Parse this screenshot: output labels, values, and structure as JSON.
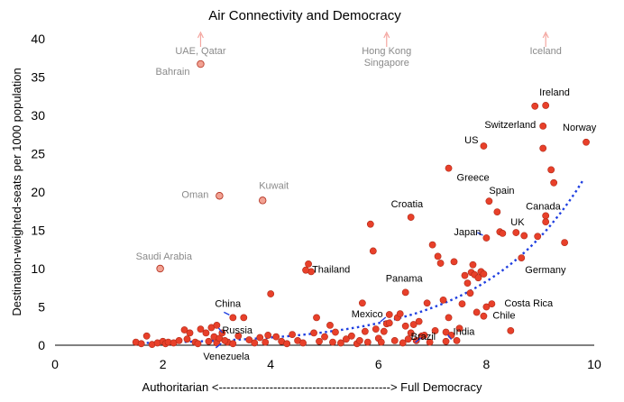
{
  "chart_data": {
    "type": "scatter",
    "title": "Air Connectivity and Democracy",
    "ylabel": "Destination-weighted-seats per 1000 population",
    "x_axis_caption": "Authoritarian <--------------------------------------------> Full Democracy",
    "xlim": [
      0,
      10
    ],
    "ylim": [
      0,
      40
    ],
    "xticks": [
      "0",
      "2",
      "4",
      "6",
      "8",
      "10"
    ],
    "yticks": [
      "0",
      "5",
      "10",
      "15",
      "20",
      "25",
      "30",
      "35",
      "40"
    ],
    "colors": {
      "point": "#e8402a",
      "outlier": "#f2a293",
      "trend": "#1f3fe0"
    },
    "trendline": {
      "style": "dotted",
      "color": "#1f3fe0",
      "x_start": 1.6,
      "x_end": 9.8,
      "intercept": 0.12,
      "rate": 0.53
    },
    "outlier_markers": [
      {
        "label": "UAE, Qatar",
        "x": 2.7
      },
      {
        "label": "Hong Kong\nSingapore",
        "x": 6.15
      },
      {
        "label": "Iceland",
        "x": 9.1
      }
    ],
    "labeled_points": [
      {
        "label": "Bahrain",
        "x": 2.7,
        "y": 36.7,
        "faded": true
      },
      {
        "label": "Oman",
        "x": 3.05,
        "y": 19.5,
        "faded": true
      },
      {
        "label": "Kuwait",
        "x": 3.85,
        "y": 18.9,
        "faded": true
      },
      {
        "label": "Saudi Arabia",
        "x": 1.95,
        "y": 10.0,
        "faded": true
      },
      {
        "label": "Ireland",
        "x": 9.1,
        "y": 31.3
      },
      {
        "label": "Switzerland",
        "x": 9.05,
        "y": 28.6
      },
      {
        "label": "US",
        "x": 7.95,
        "y": 26.0
      },
      {
        "label": "Norway",
        "x": 9.85,
        "y": 26.5
      },
      {
        "label": "Greece",
        "x": 7.3,
        "y": 23.1
      },
      {
        "label": "Spain",
        "x": 8.05,
        "y": 18.8
      },
      {
        "label": "Canada",
        "x": 9.1,
        "y": 16.9
      },
      {
        "label": "Croatia",
        "x": 6.6,
        "y": 16.7
      },
      {
        "label": "UK",
        "x": 8.55,
        "y": 14.7
      },
      {
        "label": "Japan",
        "x": 8.0,
        "y": 14.0
      },
      {
        "label": "Germany",
        "x": 8.65,
        "y": 11.4
      },
      {
        "label": "Thailand",
        "x": 4.65,
        "y": 9.8
      },
      {
        "label": "Panama",
        "x": 6.5,
        "y": 6.9
      },
      {
        "label": "Costa Rica",
        "x": 8.1,
        "y": 5.4
      },
      {
        "label": "China",
        "x": 3.3,
        "y": 3.6
      },
      {
        "label": "Mexico",
        "x": 6.2,
        "y": 4.0
      },
      {
        "label": "Chile",
        "x": 7.95,
        "y": 3.8
      },
      {
        "label": "Russia",
        "x": 3.0,
        "y": 2.6
      },
      {
        "label": "India",
        "x": 7.25,
        "y": 1.7
      },
      {
        "label": "Brazil",
        "x": 6.85,
        "y": 1.3
      },
      {
        "label": "Venezuela",
        "x": 3.15,
        "y": 0.6
      }
    ],
    "points": [
      [
        1.5,
        0.4
      ],
      [
        1.6,
        0.2
      ],
      [
        1.7,
        1.2
      ],
      [
        1.8,
        0.1
      ],
      [
        1.9,
        0.3
      ],
      [
        2.0,
        0.5
      ],
      [
        2.05,
        0.2
      ],
      [
        2.1,
        0.4
      ],
      [
        2.2,
        0.3
      ],
      [
        2.3,
        0.6
      ],
      [
        2.4,
        2.0
      ],
      [
        2.45,
        0.8
      ],
      [
        2.5,
        1.6
      ],
      [
        2.6,
        0.4
      ],
      [
        2.65,
        0.2
      ],
      [
        2.7,
        2.1
      ],
      [
        2.8,
        1.6
      ],
      [
        2.85,
        0.5
      ],
      [
        2.9,
        2.3
      ],
      [
        2.95,
        1.1
      ],
      [
        3.0,
        0.3
      ],
      [
        3.05,
        0.9
      ],
      [
        3.1,
        1.6
      ],
      [
        3.2,
        0.4
      ],
      [
        3.3,
        0.2
      ],
      [
        3.4,
        1.2
      ],
      [
        3.5,
        3.6
      ],
      [
        3.6,
        0.7
      ],
      [
        3.7,
        0.3
      ],
      [
        3.8,
        1.0
      ],
      [
        3.9,
        0.4
      ],
      [
        3.95,
        1.3
      ],
      [
        4.0,
        6.7
      ],
      [
        4.1,
        1.1
      ],
      [
        4.2,
        0.5
      ],
      [
        4.3,
        0.2
      ],
      [
        4.4,
        1.4
      ],
      [
        4.5,
        0.6
      ],
      [
        4.6,
        0.3
      ],
      [
        4.7,
        10.6
      ],
      [
        4.75,
        9.6
      ],
      [
        4.8,
        1.6
      ],
      [
        4.85,
        3.6
      ],
      [
        4.9,
        0.5
      ],
      [
        5.0,
        1.1
      ],
      [
        5.1,
        2.6
      ],
      [
        5.15,
        0.4
      ],
      [
        5.2,
        1.7
      ],
      [
        5.3,
        0.3
      ],
      [
        5.4,
        0.8
      ],
      [
        5.5,
        1.2
      ],
      [
        5.6,
        0.2
      ],
      [
        5.65,
        0.6
      ],
      [
        5.7,
        5.5
      ],
      [
        5.75,
        1.8
      ],
      [
        5.8,
        0.4
      ],
      [
        5.85,
        15.8
      ],
      [
        5.9,
        12.3
      ],
      [
        5.95,
        2.1
      ],
      [
        6.0,
        0.9
      ],
      [
        6.05,
        0.4
      ],
      [
        6.1,
        1.8
      ],
      [
        6.15,
        2.8
      ],
      [
        6.2,
        2.9
      ],
      [
        6.3,
        0.6
      ],
      [
        6.35,
        3.6
      ],
      [
        6.4,
        4.1
      ],
      [
        6.45,
        0.3
      ],
      [
        6.5,
        2.5
      ],
      [
        6.55,
        0.8
      ],
      [
        6.6,
        1.6
      ],
      [
        6.65,
        2.7
      ],
      [
        6.7,
        0.6
      ],
      [
        6.75,
        3.1
      ],
      [
        6.8,
        1.2
      ],
      [
        6.9,
        5.5
      ],
      [
        6.95,
        0.4
      ],
      [
        7.0,
        13.1
      ],
      [
        7.05,
        1.9
      ],
      [
        7.1,
        11.6
      ],
      [
        7.15,
        10.7
      ],
      [
        7.2,
        5.9
      ],
      [
        7.25,
        0.5
      ],
      [
        7.3,
        3.6
      ],
      [
        7.35,
        1.3
      ],
      [
        7.4,
        10.9
      ],
      [
        7.45,
        0.6
      ],
      [
        7.5,
        2.2
      ],
      [
        7.55,
        5.4
      ],
      [
        7.6,
        9.1
      ],
      [
        7.65,
        8.1
      ],
      [
        7.7,
        6.8
      ],
      [
        7.72,
        9.5
      ],
      [
        7.75,
        10.5
      ],
      [
        7.78,
        9.2
      ],
      [
        7.82,
        4.3
      ],
      [
        7.85,
        8.8
      ],
      [
        7.9,
        9.6
      ],
      [
        7.95,
        9.3
      ],
      [
        8.0,
        5.0
      ],
      [
        8.2,
        17.4
      ],
      [
        8.25,
        14.8
      ],
      [
        8.3,
        14.6
      ],
      [
        8.45,
        1.9
      ],
      [
        8.7,
        14.3
      ],
      [
        8.95,
        14.2
      ],
      [
        9.05,
        25.7
      ],
      [
        9.2,
        22.9
      ],
      [
        9.25,
        21.2
      ],
      [
        9.45,
        13.4
      ],
      [
        9.1,
        16.1
      ],
      [
        8.9,
        31.2
      ]
    ]
  }
}
